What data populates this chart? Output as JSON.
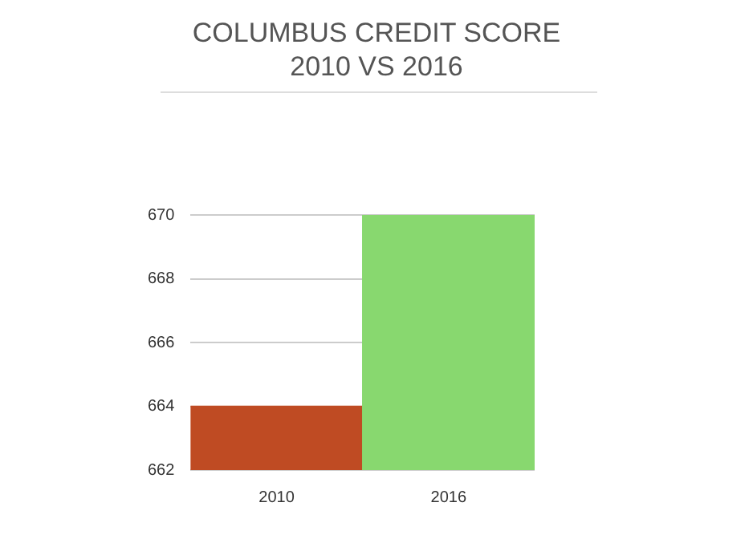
{
  "chart_data": {
    "type": "bar",
    "title": "COLUMBUS CREDIT SCORE\n2010 VS 2016",
    "categories": [
      "2010",
      "2016"
    ],
    "values": [
      664,
      670
    ],
    "colors": [
      "#bf4b23",
      "#88d86f"
    ],
    "ylim": [
      662,
      670
    ],
    "yticks": [
      662,
      664,
      666,
      668,
      670
    ],
    "grid": "y",
    "legend": false
  }
}
